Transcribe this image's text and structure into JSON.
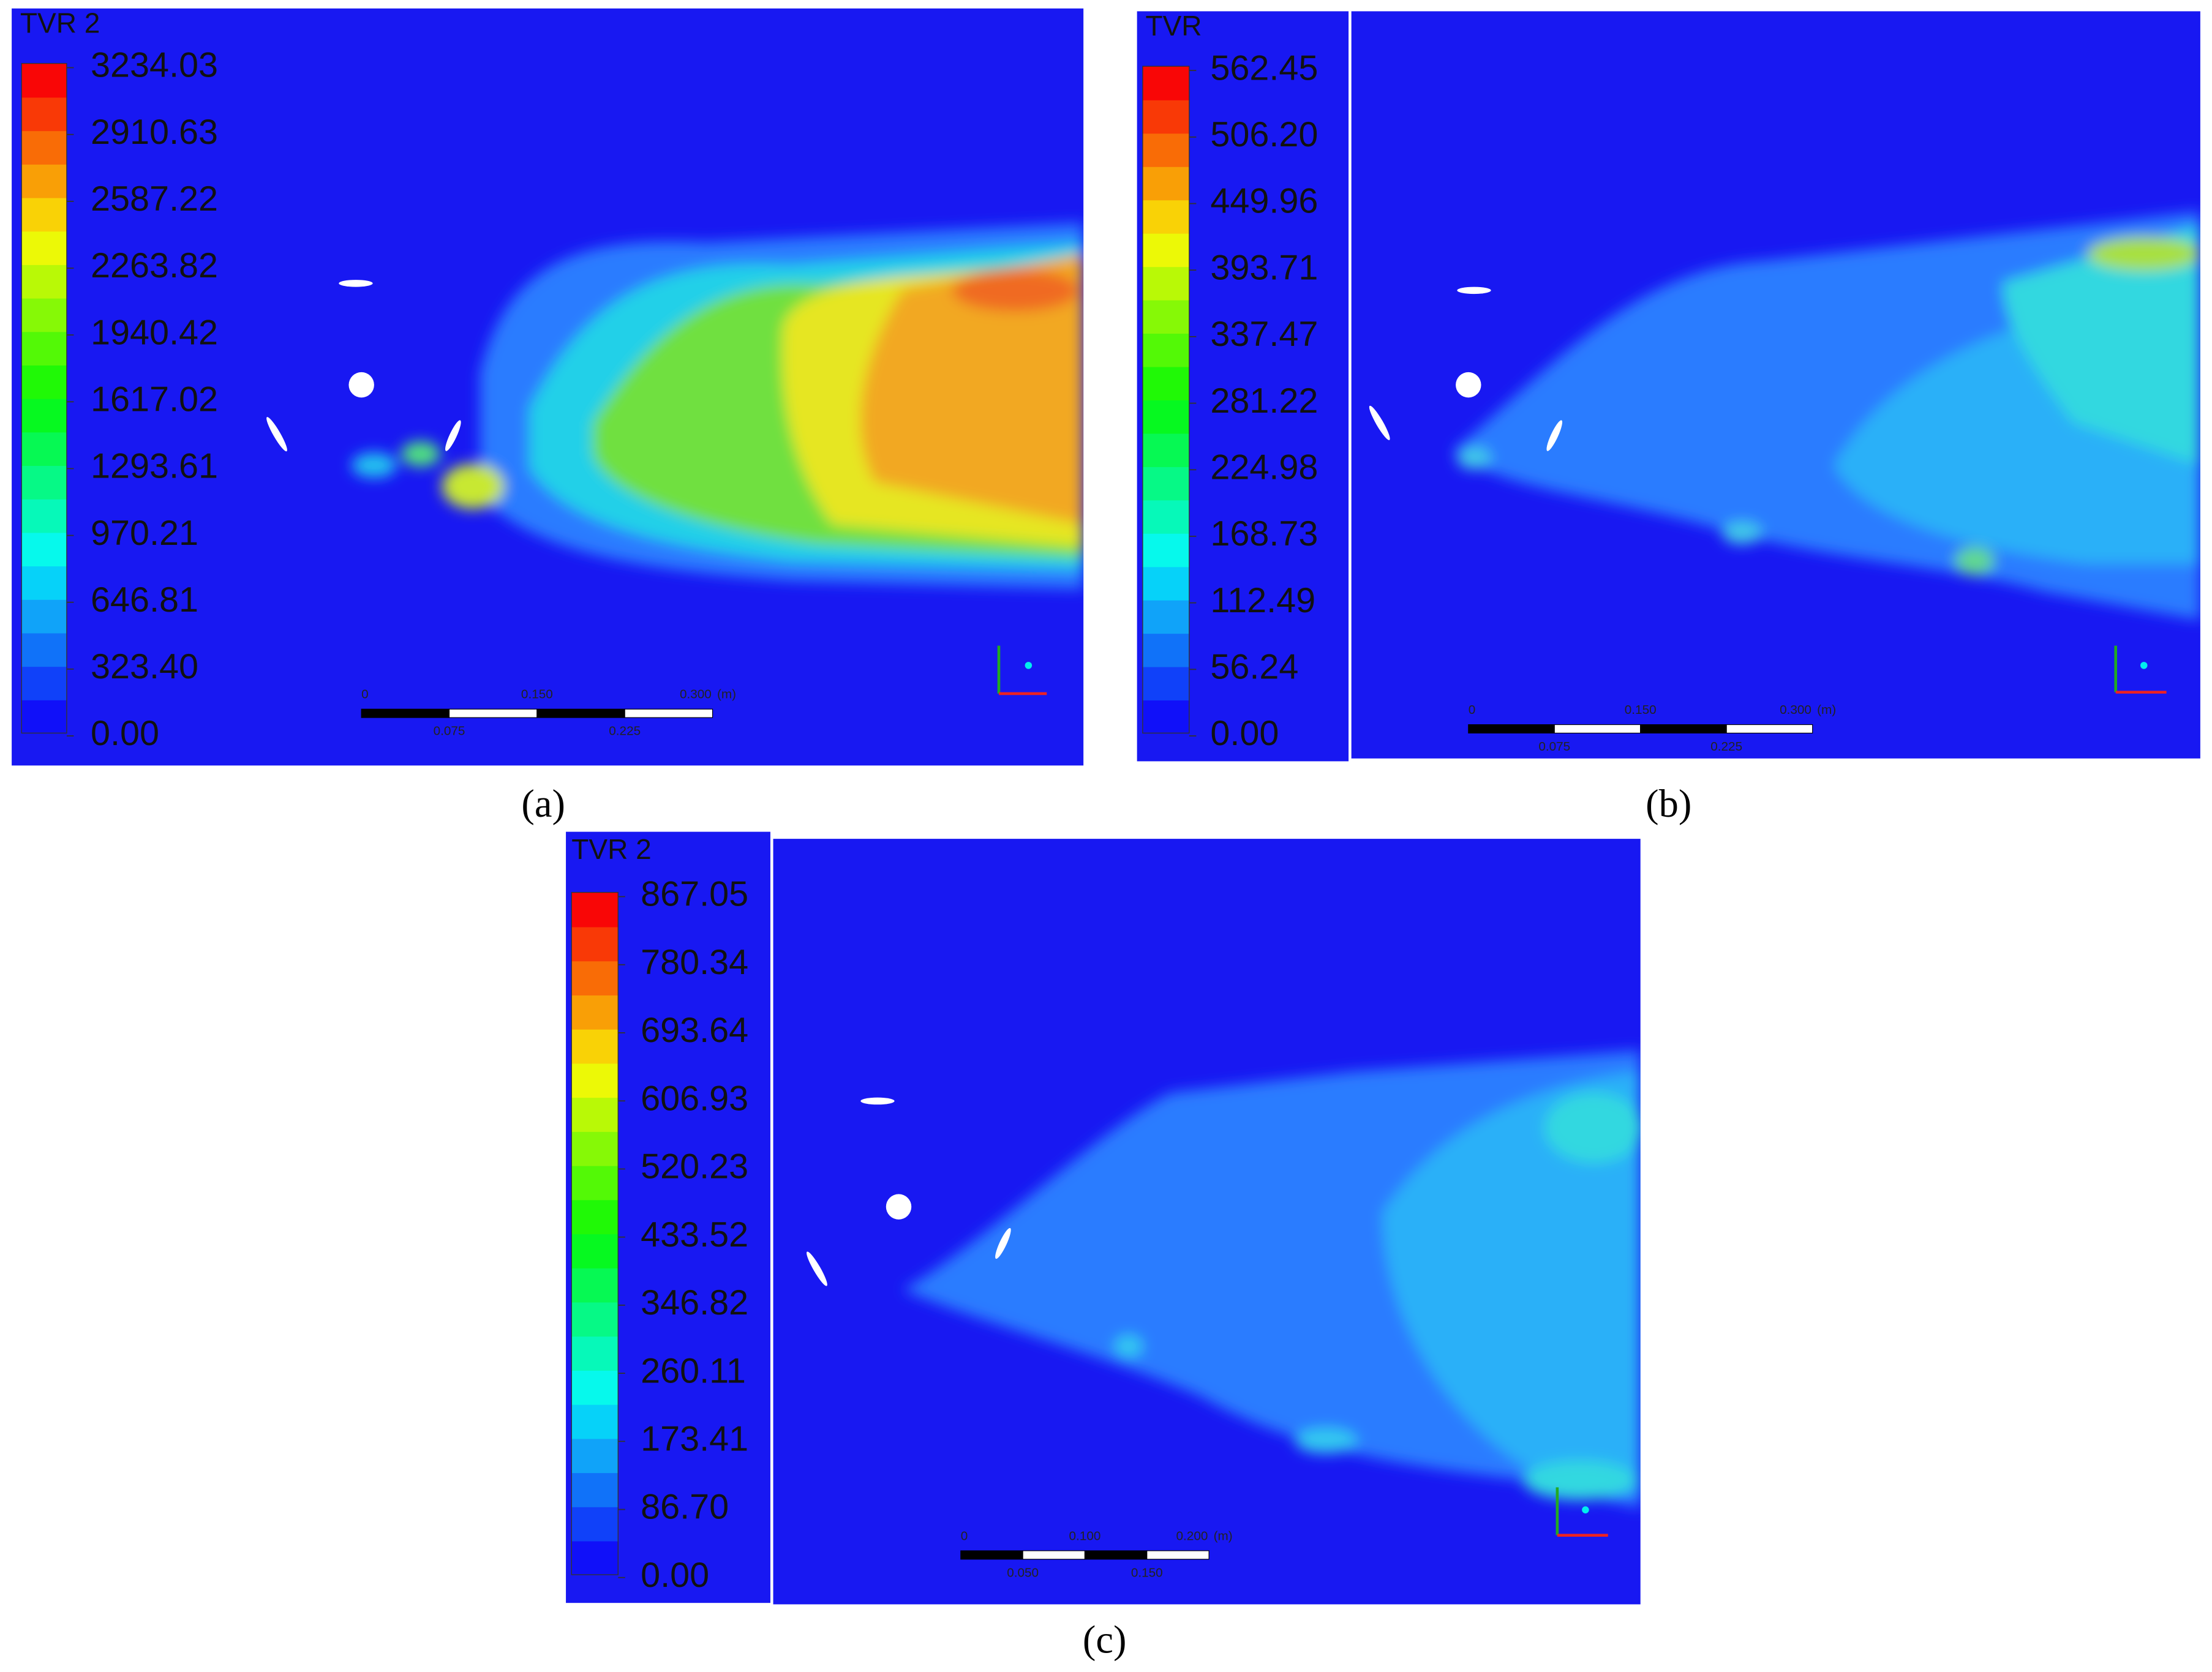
{
  "panels": [
    {
      "caption": "(a)",
      "legend_title": "TVR 2",
      "legend_labels": [
        "3234.03",
        "2910.63",
        "2587.22",
        "2263.82",
        "1940.42",
        "1617.02",
        "1293.61",
        "970.21",
        "646.81",
        "323.40",
        "0.00"
      ],
      "scale_bar": {
        "top": [
          "0",
          "0.150",
          "0.300",
          "(m)"
        ],
        "bottom": [
          "0.075",
          "0.225"
        ]
      }
    },
    {
      "caption": "(b)",
      "legend_title": "TVR",
      "legend_labels": [
        "562.45",
        "506.20",
        "449.96",
        "393.71",
        "337.47",
        "281.22",
        "224.98",
        "168.73",
        "112.49",
        "56.24",
        "0.00"
      ],
      "scale_bar": {
        "top": [
          "0",
          "0.150",
          "0.300",
          "(m)"
        ],
        "bottom": [
          "0.075",
          "0.225"
        ]
      }
    },
    {
      "caption": "(c)",
      "legend_title": "TVR 2",
      "legend_labels": [
        "867.05",
        "780.34",
        "693.64",
        "606.93",
        "520.23",
        "433.52",
        "346.82",
        "260.11",
        "173.41",
        "86.70",
        "0.00"
      ],
      "scale_bar": {
        "top": [
          "0",
          "0.100",
          "0.200",
          "(m)"
        ],
        "bottom": [
          "0.050",
          "0.150"
        ]
      }
    }
  ]
}
